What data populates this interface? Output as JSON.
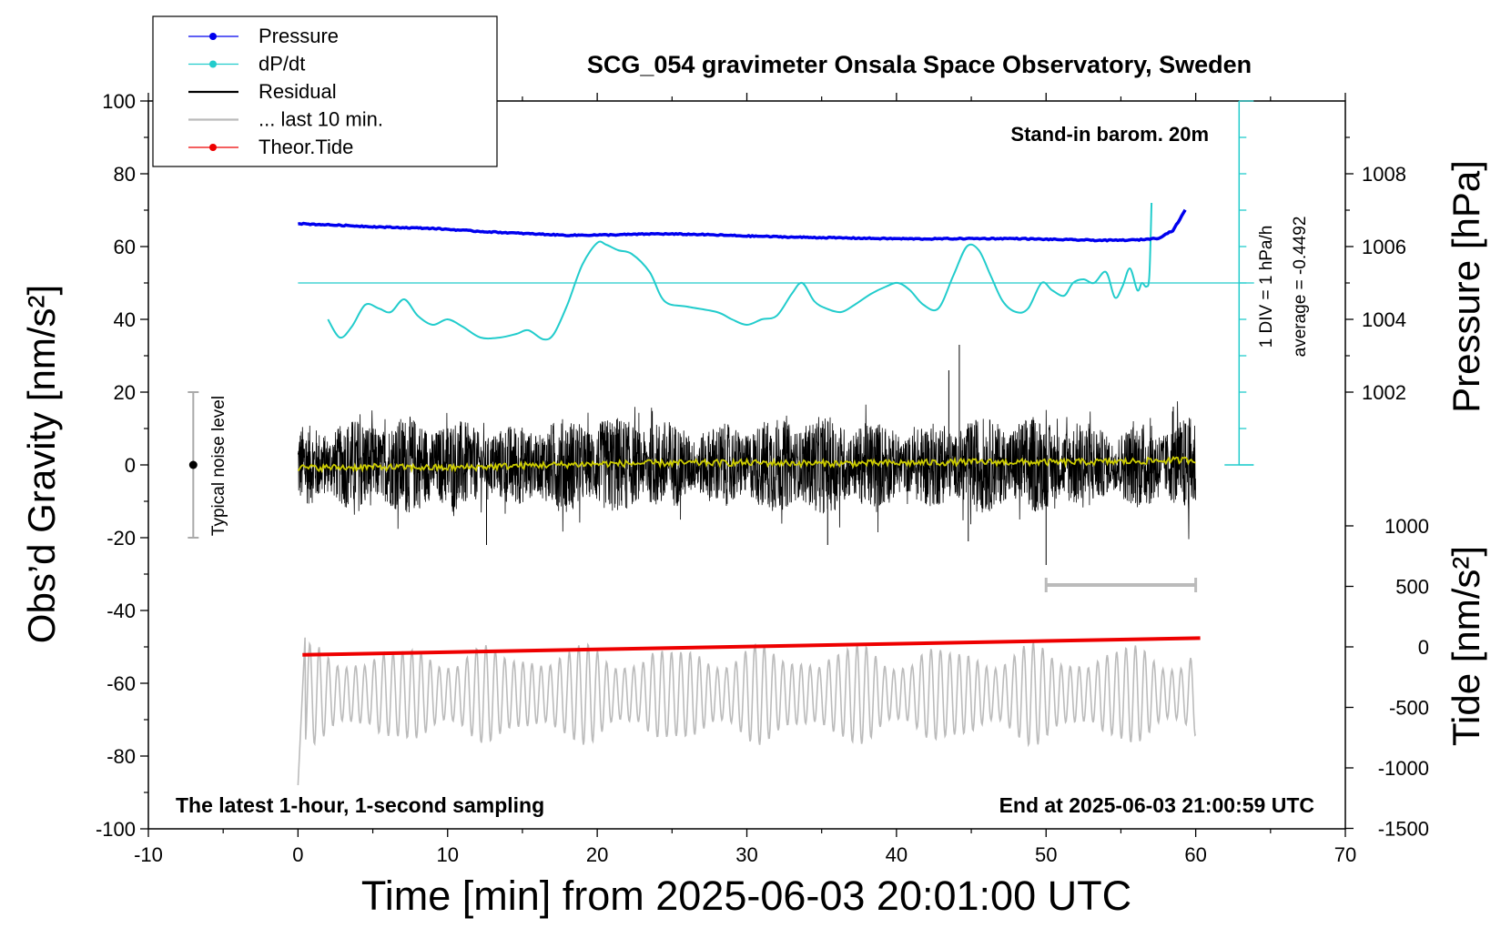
{
  "chart_data": {
    "type": "line",
    "title": "SCG_054 gravimeter Onsala Space Observatory, Sweden",
    "xlabel": "Time [min] from 2025-06-03 20:01:00 UTC",
    "ylabel_left": "Obs’d Gravity [nm/s²]",
    "ylabel_pressure": "Pressure [hPa]",
    "ylabel_tide": "Tide [nm/s²]",
    "xlim": [
      -10,
      70
    ],
    "ylim_left": [
      -100,
      100
    ],
    "x_ticks": [
      "-10",
      "0",
      "10",
      "20",
      "30",
      "40",
      "50",
      "60",
      "70"
    ],
    "y_ticks_left": [
      "100",
      "80",
      "60",
      "40",
      "20",
      "0",
      "-20",
      "-40",
      "-60",
      "-80",
      "-100"
    ],
    "pressure_ticks": [
      "1008",
      "1006",
      "1004",
      "1002"
    ],
    "tide_ticks": [
      "1000",
      "500",
      "0",
      "-500",
      "-1000",
      "-1500"
    ],
    "legend_position": "top-left",
    "legend": [
      {
        "label": "Pressure",
        "color": "#0000ee",
        "marker": "dot"
      },
      {
        "label": "dP/dt",
        "color": "#22cccc",
        "marker": "dot"
      },
      {
        "label": "Residual",
        "color": "#000000",
        "marker": "none"
      },
      {
        "label": "... last 10 min.",
        "color": "#bbbbbb",
        "marker": "none"
      },
      {
        "label": "Theor.Tide",
        "color": "#ee0000",
        "marker": "dot"
      }
    ],
    "annotations": {
      "barometer": "Stand-in barom. 20m",
      "scale_div": "1 DIV = 1 hPa/h",
      "scale_avg": "average = -0.4492",
      "noise": "Typical noise level",
      "footer_left": "The latest 1-hour, 1-second sampling",
      "footer_right": "End at 2025-06-03 21:00:59 UTC"
    },
    "noise_bar": {
      "x": -7,
      "y_range": [
        -20,
        20
      ]
    },
    "last10_bar": {
      "x_range": [
        50,
        60
      ],
      "y": -33
    },
    "dpdt_reference_y": 50,
    "series": [
      {
        "name": "Pressure",
        "color": "#0000ee",
        "x": [
          0,
          3,
          6,
          9,
          12,
          15,
          18,
          21,
          24,
          27,
          30,
          33,
          36,
          39,
          42,
          45,
          48,
          51,
          54,
          56,
          57.5,
          58.5,
          59.3
        ],
        "y": [
          66.3,
          65.8,
          65.3,
          65.0,
          64.2,
          63.6,
          63.1,
          63.2,
          63.5,
          63.3,
          62.9,
          62.6,
          62.4,
          62.2,
          62.1,
          62.2,
          62.2,
          61.9,
          61.7,
          61.8,
          62.3,
          64.5,
          70.0
        ]
      },
      {
        "name": "dP/dt",
        "color": "#22cccc",
        "x": [
          2,
          2.8,
          3.6,
          4.5,
          5.4,
          6.2,
          7.1,
          8.0,
          9.0,
          10.0,
          11.0,
          12.2,
          13.5,
          14.6,
          15.4,
          16.4,
          17.1,
          18.0,
          19.0,
          20.0,
          20.6,
          21.4,
          22.3,
          23.5,
          24.5,
          26.0,
          28.0,
          29.0,
          30.0,
          31.0,
          32.0,
          33.0,
          33.7,
          34.5,
          35.3,
          36.3,
          37.2,
          38.3,
          39.3,
          40.1,
          40.9,
          41.8,
          42.8,
          43.8,
          44.7,
          45.5,
          46.3,
          47.1,
          48.0,
          48.8,
          49.7,
          50.4,
          51.2,
          51.8,
          52.5,
          53.2,
          54.0,
          54.6,
          55.1,
          55.6,
          56.1,
          56.4,
          56.7,
          56.9,
          57.05
        ],
        "y": [
          40,
          35,
          38,
          44,
          43,
          42,
          45.5,
          41,
          38.5,
          40,
          38,
          35,
          35,
          36,
          37,
          34.5,
          36,
          44,
          55,
          61,
          60.5,
          59,
          58,
          53,
          45,
          43.5,
          42,
          40,
          38.5,
          40,
          41,
          47,
          50,
          45,
          43,
          42,
          44,
          47,
          49,
          50,
          48,
          44,
          43,
          52,
          60,
          59,
          52,
          45,
          42,
          43,
          50,
          48,
          46.5,
          50,
          51,
          50,
          53,
          46,
          49,
          54,
          48,
          50,
          49,
          52,
          72
        ]
      },
      {
        "name": "Residual",
        "color": "#000000",
        "style": "noise",
        "x_range": [
          0,
          60
        ],
        "amplitude": 9,
        "spikes": [
          {
            "x": 44.2,
            "y": 33
          },
          {
            "x": 50.0,
            "y": -27.5
          },
          {
            "x": 44.8,
            "y": -21
          },
          {
            "x": 35.4,
            "y": -22
          },
          {
            "x": 12.6,
            "y": -22
          },
          {
            "x": 43.5,
            "y": 26
          },
          {
            "x": 58.5,
            "y": 16
          }
        ]
      },
      {
        "name": "Smoothed residual",
        "color": "#cccc00",
        "x": [
          0,
          5,
          10,
          15,
          20,
          25,
          30,
          35,
          40,
          45,
          50,
          55,
          60
        ],
        "y": [
          -0.8,
          -0.6,
          -0.8,
          -0.2,
          0.3,
          0.5,
          0.6,
          0.4,
          0.5,
          0.8,
          0.7,
          0.9,
          1.4
        ]
      },
      {
        "name": "... last 10 min.",
        "color": "#bbbbbb",
        "style": "oscillation",
        "x_range": [
          0,
          60
        ],
        "baseline": -63,
        "start_y": -88,
        "amplitude": 13
      },
      {
        "name": "Theor.Tide",
        "color": "#ee0000",
        "x": [
          0.3,
          60.3
        ],
        "y": [
          -52.2,
          -47.6
        ]
      }
    ]
  }
}
